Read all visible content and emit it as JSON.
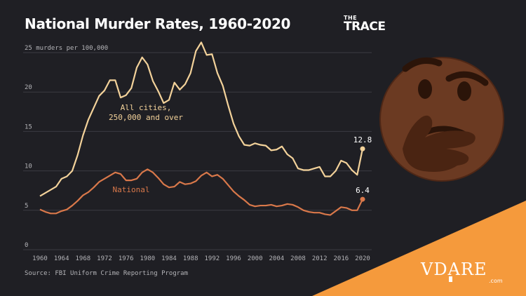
{
  "header": {
    "title": "National Murder Rates, 1960-2020",
    "logo_small": "THE",
    "logo_big": "TRACE"
  },
  "footer": {
    "source": "Source: FBI Uniform Crime Reporting Program"
  },
  "watermark": {
    "brand": "VDARE",
    "domain": ".com"
  },
  "emoji": {
    "icon": "thinking-face-icon"
  },
  "colors": {
    "background": "#1f1f24",
    "cities": "#f3d29a",
    "national": "#d9784a",
    "grid": "#3b3b42",
    "axis_text": "#b4b4b8",
    "corner": "#f59a3c"
  },
  "chart_data": {
    "type": "line",
    "title": "National Murder Rates, 1960-2020",
    "unit_label": "murders per 100,000",
    "xlabel": "",
    "ylabel": "",
    "xlim": [
      1960,
      2020
    ],
    "ylim": [
      0,
      25
    ],
    "y_ticks": [
      0,
      5,
      10,
      15,
      20,
      25
    ],
    "x_ticks": [
      1960,
      1964,
      1968,
      1972,
      1976,
      1980,
      1984,
      1988,
      1992,
      1996,
      2000,
      2004,
      2008,
      2012,
      2016,
      2020
    ],
    "grid": true,
    "x": [
      1960,
      1961,
      1962,
      1963,
      1964,
      1965,
      1966,
      1967,
      1968,
      1969,
      1970,
      1971,
      1972,
      1973,
      1974,
      1975,
      1976,
      1977,
      1978,
      1979,
      1980,
      1981,
      1982,
      1983,
      1984,
      1985,
      1986,
      1987,
      1988,
      1989,
      1990,
      1991,
      1992,
      1993,
      1994,
      1995,
      1996,
      1997,
      1998,
      1999,
      2000,
      2001,
      2002,
      2003,
      2004,
      2005,
      2006,
      2007,
      2008,
      2009,
      2010,
      2011,
      2012,
      2013,
      2014,
      2015,
      2016,
      2017,
      2018,
      2019,
      2020
    ],
    "series": [
      {
        "name": "All cities, 250,000 and over",
        "values": [
          6.8,
          7.2,
          7.6,
          8.0,
          9.0,
          9.3,
          10.0,
          12.0,
          14.5,
          16.5,
          18.0,
          19.5,
          20.2,
          21.5,
          21.5,
          19.3,
          19.6,
          20.5,
          23.1,
          24.4,
          23.5,
          21.4,
          20.1,
          18.6,
          19.0,
          21.2,
          20.3,
          21.0,
          22.4,
          25.2,
          26.3,
          24.7,
          24.8,
          22.4,
          20.8,
          18.3,
          16.0,
          14.4,
          13.3,
          13.2,
          13.5,
          13.3,
          13.2,
          12.6,
          12.7,
          13.1,
          12.1,
          11.6,
          10.3,
          10.1,
          10.1,
          10.3,
          10.5,
          9.3,
          9.3,
          10.0,
          11.3,
          11.0,
          10.1,
          9.5,
          12.8
        ],
        "end_label": "12.8"
      },
      {
        "name": "National",
        "values": [
          5.1,
          4.8,
          4.6,
          4.6,
          4.9,
          5.1,
          5.6,
          6.2,
          6.9,
          7.3,
          7.9,
          8.6,
          9.0,
          9.4,
          9.8,
          9.6,
          8.8,
          8.8,
          9.0,
          9.8,
          10.2,
          9.8,
          9.1,
          8.3,
          7.9,
          8.0,
          8.6,
          8.3,
          8.4,
          8.7,
          9.4,
          9.8,
          9.3,
          9.5,
          9.0,
          8.2,
          7.4,
          6.8,
          6.3,
          5.7,
          5.5,
          5.6,
          5.6,
          5.7,
          5.5,
          5.6,
          5.8,
          5.7,
          5.4,
          5.0,
          4.8,
          4.7,
          4.7,
          4.5,
          4.4,
          4.9,
          5.4,
          5.3,
          5.0,
          5.0,
          6.4
        ],
        "end_label": "6.4"
      }
    ]
  }
}
